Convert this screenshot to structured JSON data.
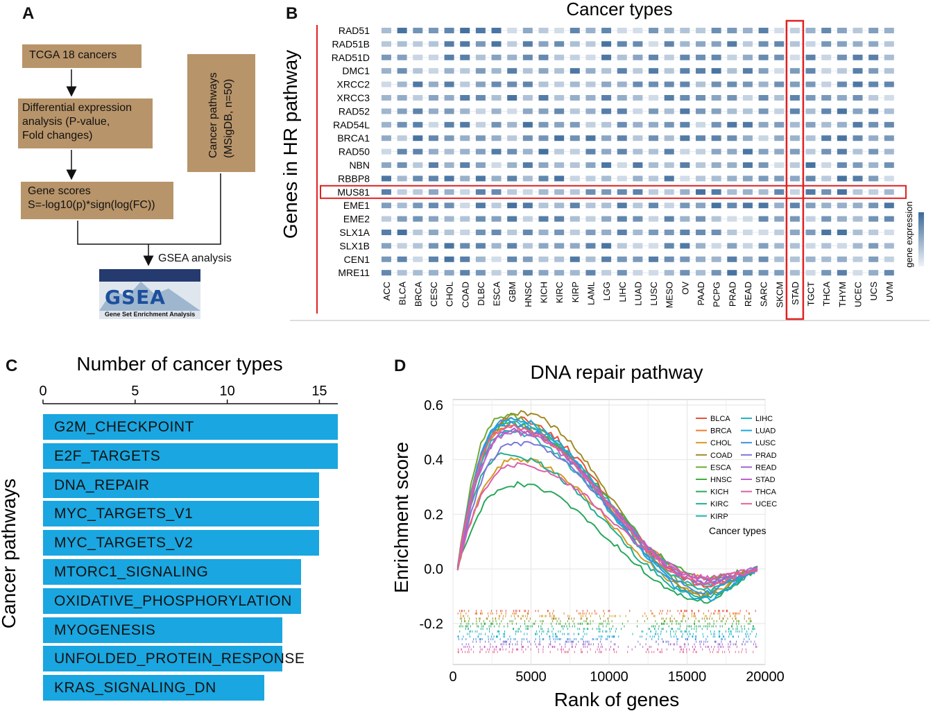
{
  "panels": {
    "a": "A",
    "b": "B",
    "c": "C",
    "d": "D"
  },
  "flowchart": {
    "box1": "TCGA 18 cancers",
    "box2": [
      "Differential expression",
      "analysis (P-value,",
      "Fold changes)"
    ],
    "box3": [
      "Gene scores",
      "S=-log10(p)*sign(log(FC))"
    ],
    "box4": [
      "Cancer pathways",
      "(MSigDB, n=50)"
    ],
    "gsea_label": "GSEA analysis",
    "gsea_logo": "GSEA",
    "gsea_logo_caption": "Gene Set Enrichment Analysis"
  },
  "colors": {
    "box": "#b8946a",
    "highlight": "#e02020",
    "bar": "#1aa6e0",
    "dot_low": "#eef2f7",
    "dot_high": "#3c6a9a"
  },
  "chart_data": [
    {
      "type": "heatmap",
      "title": "Cancer types",
      "ylabel": "Genes in HR pathway",
      "legend_label": "gene expression",
      "genes": [
        "RAD51",
        "RAD51B",
        "RAD51D",
        "DMC1",
        "XRCC2",
        "XRCC3",
        "RAD52",
        "RAD54L",
        "BRCA1",
        "RAD50",
        "NBN",
        "RBBP8",
        "MUS81",
        "EME1",
        "EME2",
        "SLX1A",
        "SLX1B",
        "CEN1",
        "MRE11"
      ],
      "cancers": [
        "ACC",
        "BLCA",
        "BRCA",
        "CESC",
        "CHOL",
        "COAD",
        "DLBC",
        "ESCA",
        "GBM",
        "HNSC",
        "KICH",
        "KIRC",
        "KIRP",
        "LAML",
        "LGG",
        "LIHC",
        "LUAD",
        "LUSC",
        "MESO",
        "OV",
        "PAAD",
        "PCPG",
        "PRAD",
        "READ",
        "SARC",
        "SKCM",
        "STAD",
        "TGCT",
        "THCA",
        "THYM",
        "UCEC",
        "UCS",
        "UVM"
      ],
      "highlight_gene": "MUS81",
      "highlight_cancer": "STAD",
      "value_range": [
        0,
        1
      ]
    },
    {
      "type": "bar",
      "orientation": "horizontal",
      "title": "Number of cancer types",
      "ylabel": "Cancer pathways",
      "categories": [
        "G2M_CHECKPOINT",
        "E2F_TARGETS",
        "DNA_REPAIR",
        "MYC_TARGETS_V1",
        "MYC_TARGETS_V2",
        "MTORC1_SIGNALING",
        "OXIDATIVE_PHOSPHORYLATION",
        "MYOGENESIS",
        "UNFOLDED_PROTEIN_RESPONSE",
        "KRAS_SIGNALING_DN"
      ],
      "values": [
        16,
        16,
        15,
        15,
        15,
        14,
        14,
        13,
        13,
        12
      ],
      "xlim": [
        0,
        16
      ],
      "xticks": [
        "0",
        "5",
        "10",
        "15"
      ]
    },
    {
      "type": "line",
      "title": "DNA repair pathway",
      "xlabel": "Rank of genes",
      "ylabel": "Enrichment score",
      "xlim": [
        0,
        20000
      ],
      "ylim": [
        -0.35,
        0.62
      ],
      "xticks": [
        "0",
        "5000",
        "10000",
        "15000",
        "20000"
      ],
      "yticks": [
        "0.6",
        "0.4",
        "0.2",
        "0.0",
        "-0.2"
      ],
      "legend_title": "Cancer types",
      "series": [
        {
          "name": "BLCA",
          "color": "#e8503a",
          "peak_x": 3800,
          "peak": 0.55
        },
        {
          "name": "BRCA",
          "color": "#ee7a2e",
          "peak_x": 3500,
          "peak": 0.52
        },
        {
          "name": "CHOL",
          "color": "#d49a20",
          "peak_x": 4200,
          "peak": 0.4
        },
        {
          "name": "COAD",
          "color": "#a08a25",
          "peak_x": 4300,
          "peak": 0.57
        },
        {
          "name": "ESCA",
          "color": "#72a832",
          "peak_x": 3300,
          "peak": 0.56
        },
        {
          "name": "HNSC",
          "color": "#3eae3e",
          "peak_x": 3600,
          "peak": 0.53
        },
        {
          "name": "KICH",
          "color": "#28a85a",
          "peak_x": 4000,
          "peak": 0.31
        },
        {
          "name": "KIRC",
          "color": "#20ae90",
          "peak_x": 3400,
          "peak": 0.42
        },
        {
          "name": "KIRP",
          "color": "#20b4b0",
          "peak_x": 3500,
          "peak": 0.5
        },
        {
          "name": "LIHC",
          "color": "#20b2cc",
          "peak_x": 3600,
          "peak": 0.54
        },
        {
          "name": "LUAD",
          "color": "#1aa6e0",
          "peak_x": 3700,
          "peak": 0.55
        },
        {
          "name": "LUSC",
          "color": "#3a90de",
          "peak_x": 3500,
          "peak": 0.53
        },
        {
          "name": "PRAD",
          "color": "#7a78d8",
          "peak_x": 4200,
          "peak": 0.46
        },
        {
          "name": "READ",
          "color": "#9a66d0",
          "peak_x": 3900,
          "peak": 0.51
        },
        {
          "name": "STAD",
          "color": "#c060c8",
          "peak_x": 3800,
          "peak": 0.5
        },
        {
          "name": "THCA",
          "color": "#de5cac",
          "peak_x": 4100,
          "peak": 0.38
        },
        {
          "name": "UCEC",
          "color": "#ee6088",
          "peak_x": 3600,
          "peak": 0.52
        }
      ]
    }
  ]
}
